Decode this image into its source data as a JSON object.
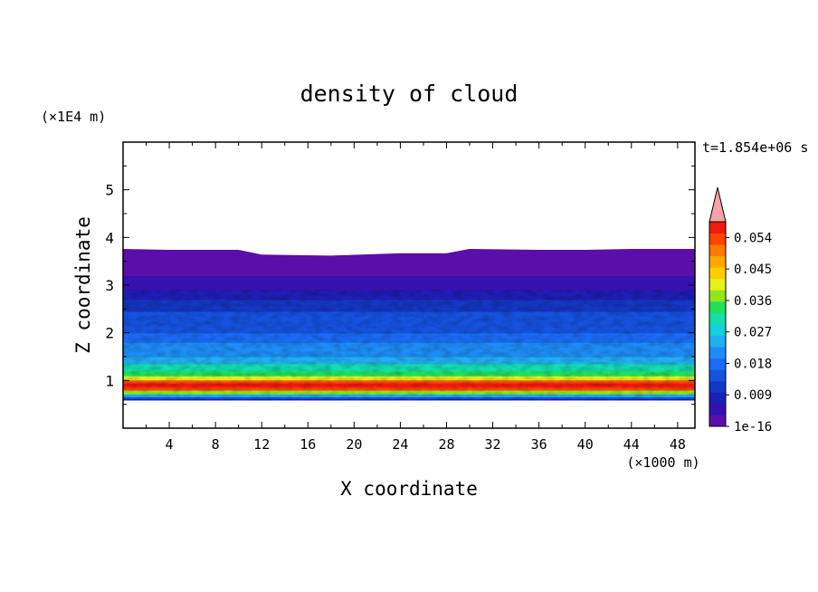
{
  "chart_data": {
    "type": "heatmap",
    "title": "density of cloud",
    "xlabel": "X coordinate",
    "ylabel": "Z coordinate",
    "x_unit": "(×1000 m)",
    "y_unit": "(×1E4 m)",
    "time_label": "t=1.854e+06 s",
    "xlim": [
      0,
      49.5
    ],
    "ylim": [
      0,
      6
    ],
    "x_ticks": [
      4,
      8,
      12,
      16,
      20,
      24,
      28,
      32,
      36,
      40,
      44,
      48
    ],
    "y_ticks": [
      1,
      2,
      3,
      4,
      5
    ],
    "cloud_base_z": 0.58,
    "cloud_top_profile": {
      "x": [
        0,
        4,
        10,
        12,
        18,
        24,
        28,
        30,
        36,
        40,
        44,
        49.5
      ],
      "z": [
        3.76,
        3.74,
        3.74,
        3.64,
        3.62,
        3.67,
        3.67,
        3.76,
        3.74,
        3.74,
        3.76,
        3.76
      ]
    },
    "vertical_profile": {
      "z": [
        0.58,
        0.62,
        0.66,
        0.72,
        0.8,
        0.88,
        0.95,
        1.02,
        1.1,
        1.2,
        1.35,
        1.5,
        1.65,
        1.8,
        2.0,
        2.2,
        2.45,
        2.7,
        2.9,
        3.2,
        3.5,
        3.76
      ],
      "density": [
        0.004,
        0.013,
        0.018,
        0.03,
        0.047,
        0.057,
        0.054,
        0.044,
        0.037,
        0.032,
        0.027,
        0.024,
        0.021,
        0.019,
        0.017,
        0.015,
        0.012,
        0.009,
        0.006,
        0.003,
        0.0015,
        0.0005
      ]
    },
    "colorbar": {
      "labels": [
        "0.054",
        "0.045",
        "0.036",
        "0.027",
        "0.018",
        "0.009",
        "1e-16"
      ],
      "label_levels": [
        0.054,
        0.045,
        0.036,
        0.027,
        0.018,
        0.009,
        0
      ],
      "min": 0,
      "max": 0.0585,
      "extend": "max",
      "extend_color": "#f4a3a8",
      "colors": [
        "#5b0eaa",
        "#3511b0",
        "#1c1fb6",
        "#1437c4",
        "#1652e0",
        "#1a6cf4",
        "#1e8cf6",
        "#1fb0f0",
        "#15d1d9",
        "#13dfa8",
        "#23e05b",
        "#8ee71c",
        "#e6f01a",
        "#ffd000",
        "#ffa800",
        "#ff7a00",
        "#ff4500",
        "#f01a10"
      ]
    }
  }
}
